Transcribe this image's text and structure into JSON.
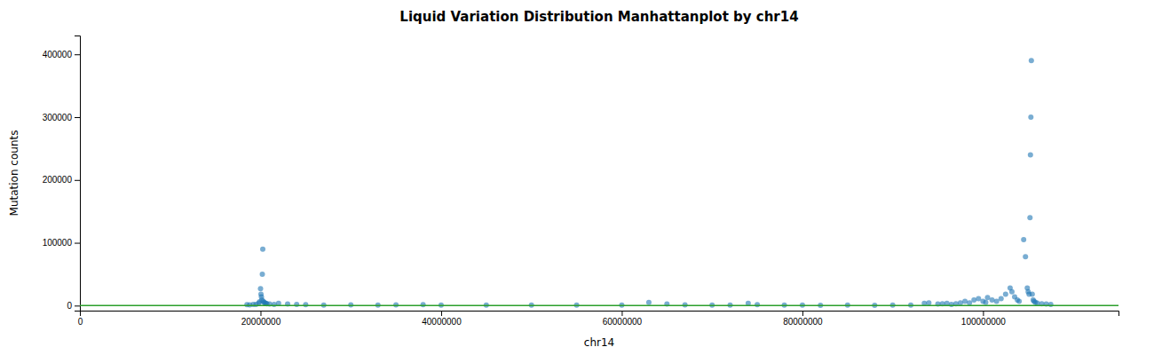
{
  "chart_data": {
    "type": "scatter",
    "title": "Liquid Variation Distribution Manhattanplot by chr14",
    "x_label": "chr14",
    "y_label": "Mutation counts",
    "xlim": [
      0,
      115000000
    ],
    "ylim": [
      -8000,
      430000
    ],
    "xticks": [
      0,
      20000000,
      40000000,
      60000000,
      80000000,
      100000000
    ],
    "yticks": [
      0,
      100000,
      200000,
      300000,
      400000
    ],
    "grid": false,
    "baseline": 0,
    "x": [
      18500000,
      18800000,
      19200000,
      19500000,
      19800000,
      19900000,
      20000000,
      20050000,
      20100000,
      20150000,
      20200000,
      20250000,
      20300000,
      20400000,
      20500000,
      20600000,
      20700000,
      21000000,
      21500000,
      22000000,
      23000000,
      24000000,
      25000000,
      27000000,
      30000000,
      33000000,
      35000000,
      38000000,
      40000000,
      45000000,
      50000000,
      55000000,
      60000000,
      63000000,
      65000000,
      67000000,
      70000000,
      72000000,
      74000000,
      75000000,
      78000000,
      80000000,
      82000000,
      85000000,
      88000000,
      90000000,
      92000000,
      93500000,
      94000000,
      95000000,
      95500000,
      96000000,
      96500000,
      97000000,
      97500000,
      98000000,
      98500000,
      99000000,
      99500000,
      100000000,
      100300000,
      100500000,
      101000000,
      101500000,
      102000000,
      102500000,
      103000000,
      103200000,
      103500000,
      103800000,
      104000000,
      104500000,
      104700000,
      104900000,
      105000000,
      105100000,
      105200000,
      105250000,
      105300000,
      105350000,
      105450000,
      105550000,
      105650000,
      105800000,
      106000000,
      106500000,
      107000000,
      107500000
    ],
    "values": [
      1500,
      1200,
      2000,
      1800,
      4000,
      6000,
      27000,
      18000,
      14000,
      9000,
      50000,
      90000,
      7000,
      5000,
      4000,
      3500,
      3000,
      2500,
      2000,
      3500,
      2500,
      2000,
      1500,
      1000,
      1200,
      800,
      1200,
      1500,
      900,
      800,
      700,
      900,
      1000,
      5000,
      2500,
      1200,
      700,
      800,
      3500,
      1500,
      800,
      700,
      600,
      800,
      600,
      700,
      1000,
      3500,
      4500,
      2500,
      3000,
      3500,
      2000,
      3000,
      4500,
      7000,
      4500,
      9000,
      11000,
      7000,
      5000,
      13000,
      9000,
      7000,
      11000,
      18000,
      28000,
      22000,
      14000,
      9000,
      7000,
      105000,
      78000,
      28000,
      22000,
      18000,
      140000,
      240000,
      300000,
      390000,
      18000,
      9000,
      7000,
      5000,
      4000,
      3000,
      2500,
      1800
    ]
  }
}
